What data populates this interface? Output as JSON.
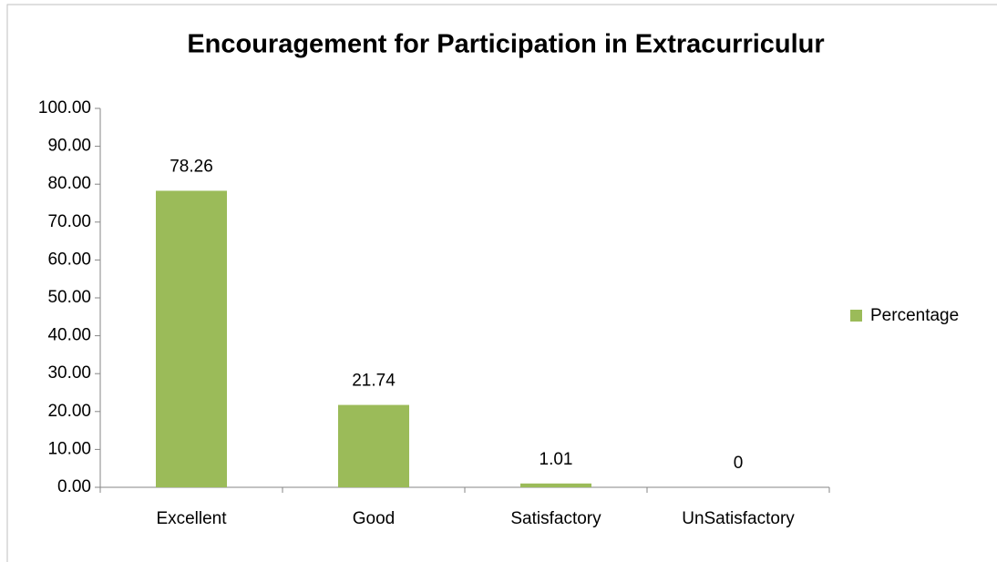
{
  "chart_data": {
    "type": "bar",
    "title": "Encouragement for Participation in Extracurriculur",
    "categories": [
      "Excellent",
      "Good",
      "Satisfactory",
      "UnSatisfactory"
    ],
    "series": [
      {
        "name": "Percentage",
        "color": "#9bbb59",
        "values": [
          78.26,
          21.74,
          1.01,
          0
        ]
      }
    ],
    "ylim": [
      0,
      100
    ],
    "yticks": [
      {
        "value": 0,
        "label": "0.00"
      },
      {
        "value": 10,
        "label": "10.00"
      },
      {
        "value": 20,
        "label": "20.00"
      },
      {
        "value": 30,
        "label": "30.00"
      },
      {
        "value": 40,
        "label": "40.00"
      },
      {
        "value": 50,
        "label": "50.00"
      },
      {
        "value": 60,
        "label": "60.00"
      },
      {
        "value": 70,
        "label": "70.00"
      },
      {
        "value": 80,
        "label": "80.00"
      },
      {
        "value": 90,
        "label": "90.00"
      },
      {
        "value": 100,
        "label": "100.00"
      }
    ],
    "grid": false,
    "legend": "right"
  }
}
